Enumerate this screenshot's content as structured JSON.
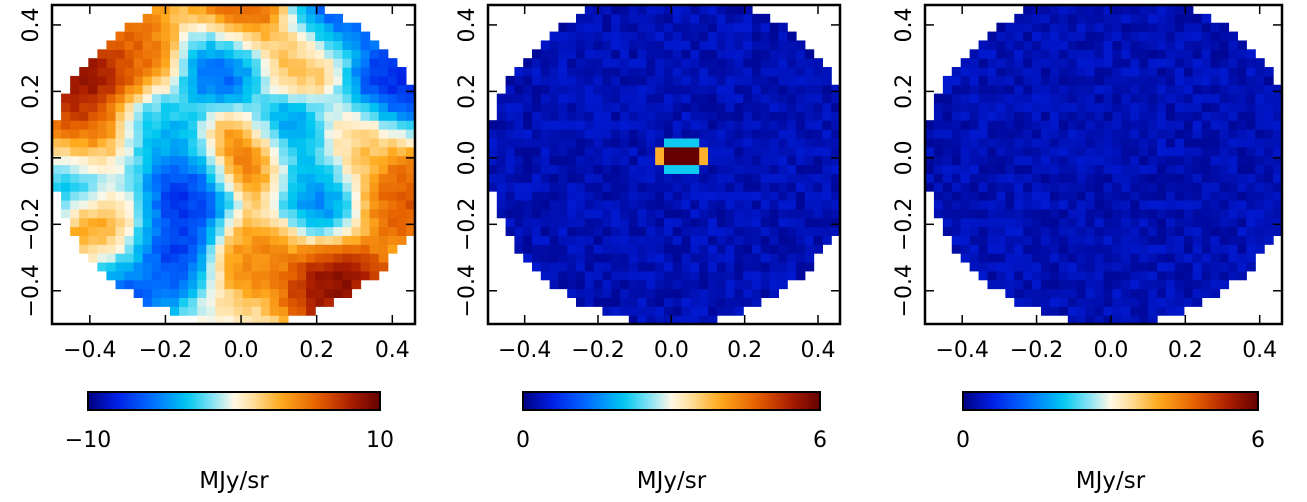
{
  "chart_data": [
    {
      "type": "heatmap",
      "title": "",
      "xlabel": "",
      "ylabel": "",
      "xlim": [
        -0.5,
        0.46
      ],
      "ylim": [
        -0.5,
        0.46
      ],
      "x_ticks": [
        -0.4,
        -0.2,
        0.0,
        0.2,
        0.4
      ],
      "x_tick_labels": [
        "−0.4",
        "−0.2",
        "0.0",
        "0.2",
        "0.4"
      ],
      "y_ticks": [
        -0.4,
        -0.2,
        0.0,
        0.2,
        0.4
      ],
      "y_tick_labels": [
        "−0.4",
        "−0.2",
        "0.0",
        "0.2",
        "0.4"
      ],
      "aperture_radius": 0.5,
      "colormap": "blue-cyan-white-orange-darkred",
      "colorbar": {
        "min": -10,
        "max": 10,
        "tick_labels": [
          "−10",
          "10"
        ],
        "unit": "MJy/sr",
        "orientation": "horizontal"
      },
      "features": [
        {
          "x": -0.41,
          "y": 0.25,
          "value": 10
        },
        {
          "x": -0.42,
          "y": 0.07,
          "value": 8
        },
        {
          "x": 0.02,
          "y": 0.0,
          "value": 10
        },
        {
          "x": 0.25,
          "y": -0.38,
          "value": 10
        },
        {
          "x": 0.0,
          "y": 0.43,
          "value": 8
        },
        {
          "x": 0.42,
          "y": -0.12,
          "value": 7
        },
        {
          "x": 0.16,
          "y": 0.3,
          "value": 4
        },
        {
          "x": -0.26,
          "y": 0.33,
          "value": 6
        },
        {
          "x": 0.05,
          "y": -0.28,
          "value": 5
        },
        {
          "x": -0.35,
          "y": -0.22,
          "value": 5
        },
        {
          "x": 0.3,
          "y": 0.05,
          "value": 3
        },
        {
          "x": -0.12,
          "y": -0.08,
          "value": -9
        },
        {
          "x": -0.2,
          "y": -0.25,
          "value": -9
        },
        {
          "x": 0.12,
          "y": 0.06,
          "value": -8
        },
        {
          "x": -0.05,
          "y": 0.3,
          "value": -8
        },
        {
          "x": 0.4,
          "y": 0.22,
          "value": -9
        },
        {
          "x": 0.24,
          "y": 0.42,
          "value": -8
        },
        {
          "x": -0.32,
          "y": -0.4,
          "value": -7
        },
        {
          "x": -0.22,
          "y": 0.08,
          "value": -4
        },
        {
          "x": 0.2,
          "y": -0.12,
          "value": -6
        },
        {
          "x": -0.45,
          "y": -0.05,
          "value": -5
        }
      ]
    },
    {
      "type": "heatmap",
      "title": "",
      "xlabel": "",
      "ylabel": "",
      "xlim": [
        -0.5,
        0.46
      ],
      "ylim": [
        -0.5,
        0.46
      ],
      "x_ticks": [
        -0.4,
        -0.2,
        0.0,
        0.2,
        0.4
      ],
      "x_tick_labels": [
        "−0.4",
        "−0.2",
        "0.0",
        "0.2",
        "0.4"
      ],
      "y_ticks": [
        -0.4,
        -0.2,
        0.0,
        0.2,
        0.4
      ],
      "y_tick_labels": [
        "−0.4",
        "−0.2",
        "0.0",
        "0.2",
        "0.4"
      ],
      "aperture_radius": 0.5,
      "colormap": "blue-cyan-white-orange-darkred",
      "colorbar": {
        "min": 0,
        "max": 6,
        "tick_labels": [
          "0",
          "6"
        ],
        "unit": "MJy/sr",
        "orientation": "horizontal"
      },
      "background_level": 0.3,
      "features": [
        {
          "x": 0.02,
          "y": 0.0,
          "value": 6,
          "shape": "compact source"
        }
      ]
    },
    {
      "type": "heatmap",
      "title": "",
      "xlabel": "",
      "ylabel": "",
      "xlim": [
        -0.5,
        0.46
      ],
      "ylim": [
        -0.5,
        0.46
      ],
      "x_ticks": [
        -0.4,
        -0.2,
        0.0,
        0.2,
        0.4
      ],
      "x_tick_labels": [
        "−0.4",
        "−0.2",
        "0.0",
        "0.2",
        "0.4"
      ],
      "y_ticks": [
        -0.4,
        -0.2,
        0.0,
        0.2,
        0.4
      ],
      "y_tick_labels": [
        "−0.4",
        "−0.2",
        "0.0",
        "0.2",
        "0.4"
      ],
      "aperture_radius": 0.5,
      "colormap": "blue-cyan-white-orange-darkred",
      "colorbar": {
        "min": 0,
        "max": 6,
        "tick_labels": [
          "0",
          "6"
        ],
        "unit": "MJy/sr",
        "orientation": "horizontal"
      },
      "background_level": 0.3,
      "features": []
    }
  ]
}
